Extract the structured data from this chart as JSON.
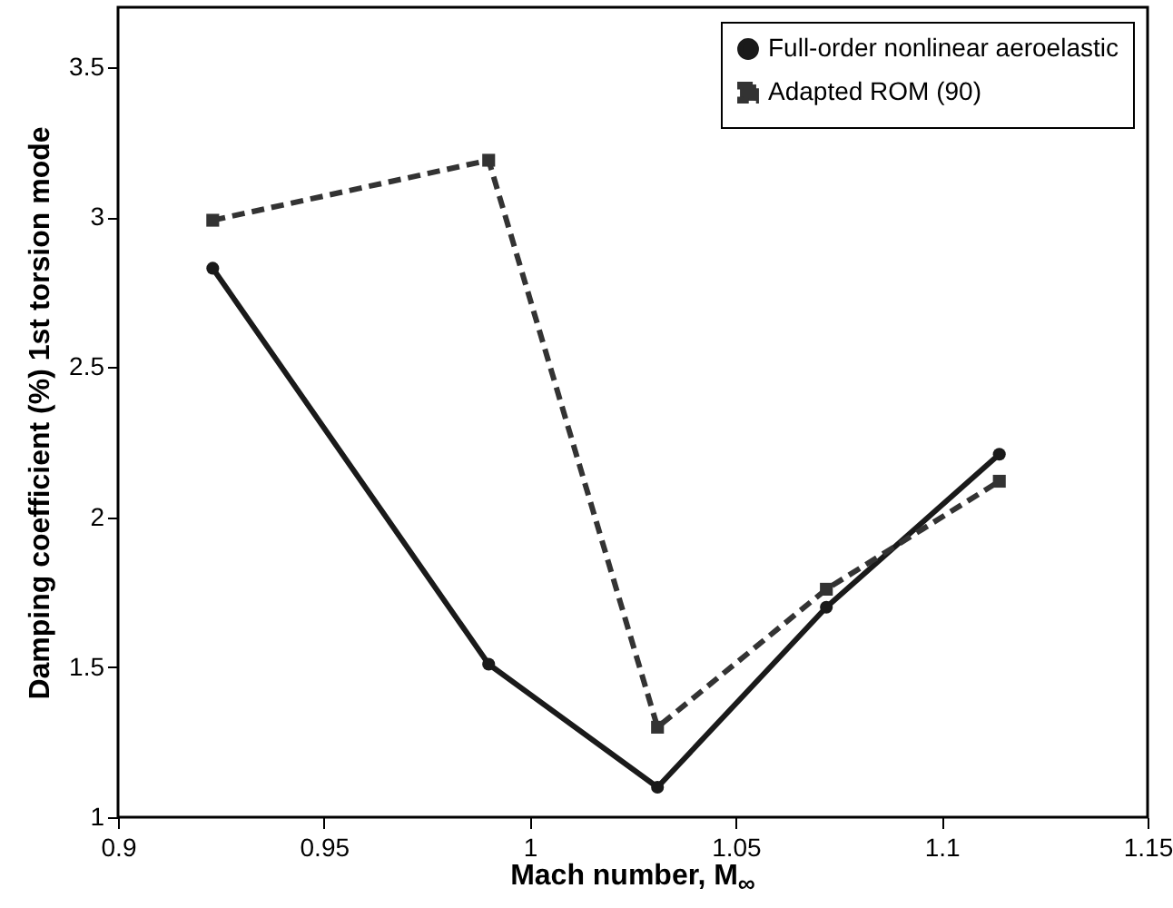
{
  "chart_data": {
    "type": "line",
    "xlabel": "Mach number, M$_{∞}$",
    "ylabel": "Damping coefficient (%) 1st torsion mode",
    "x": [
      0.923,
      0.99,
      1.031,
      1.072,
      1.114
    ],
    "series": [
      {
        "name": "Full-order nonlinear aeroelastic",
        "color": "#1a1a1a",
        "marker": "circle",
        "line_style": "solid",
        "values": [
          2.83,
          1.51,
          1.1,
          1.7,
          2.21
        ]
      },
      {
        "name": "Adapted ROM (90)",
        "color": "#333333",
        "marker": "square",
        "line_style": "dashed",
        "values": [
          2.99,
          3.19,
          1.3,
          1.76,
          2.12
        ]
      }
    ],
    "xlim": [
      0.9,
      1.15
    ],
    "xticks": [
      0.9,
      0.95,
      1,
      1.05,
      1.1,
      1.15
    ],
    "ylim": [
      1,
      3.7
    ],
    "yticks": [
      1,
      1.5,
      2,
      2.5,
      3,
      3.5
    ],
    "grid": false,
    "legend": "top right"
  }
}
